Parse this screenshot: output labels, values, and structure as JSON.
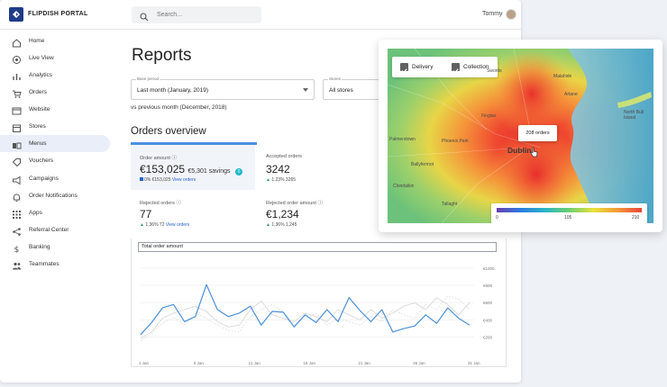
{
  "app": {
    "name": "FLIPDISH PORTAL"
  },
  "search": {
    "placeholder": "Search..."
  },
  "user": {
    "name": "Tommy"
  },
  "sidebar": {
    "items": [
      {
        "label": "Home",
        "icon": "home-icon"
      },
      {
        "label": "Live View",
        "icon": "live-view-icon"
      },
      {
        "label": "Analytics",
        "icon": "analytics-icon"
      },
      {
        "label": "Orders",
        "icon": "orders-icon"
      },
      {
        "label": "Website",
        "icon": "website-icon"
      },
      {
        "label": "Stores",
        "icon": "stores-icon"
      },
      {
        "label": "Menus",
        "icon": "menus-icon"
      },
      {
        "label": "Vouchers",
        "icon": "vouchers-icon"
      },
      {
        "label": "Campaigns",
        "icon": "campaigns-icon"
      },
      {
        "label": "Order Notifications",
        "icon": "notifications-icon"
      },
      {
        "label": "Apps",
        "icon": "apps-icon"
      },
      {
        "label": "Referral Center",
        "icon": "referral-icon"
      },
      {
        "label": "Banking",
        "icon": "banking-icon"
      },
      {
        "label": "Teammates",
        "icon": "teammates-icon"
      }
    ],
    "active_index": 6
  },
  "reports": {
    "title": "Reports",
    "base_period_label": "Base period",
    "base_period_value": "Last month (January, 2019)",
    "stores_label": "Stores",
    "stores_value": "All stores",
    "comparison_text": "vs previous month (December, 2018)",
    "section_title": "Orders overview"
  },
  "stats": {
    "order_amount": {
      "label": "Order amount",
      "value": "€153,025",
      "savings": "€5,301 savings",
      "sub": "0% €153,025",
      "link": "View orders",
      "badge": "0"
    },
    "accepted_orders": {
      "label": "Accepted orders",
      "value": "3242",
      "sub": "1.23% 3265"
    },
    "rejected_orders": {
      "label": "Rejected orders",
      "value": "77",
      "sub": "1.36% 72",
      "link": "View orders"
    },
    "rejected_amount": {
      "label": "Rejected order amount",
      "value": "€1,234",
      "sub": "1.36% 1,245"
    }
  },
  "chart": {
    "label": "Total order amount",
    "x_ticks": [
      "1 Jan",
      "6 Jan",
      "11 Jan",
      "16 Jan",
      "21 Jan",
      "26 Jan",
      "31 Jan"
    ],
    "y_ticks": [
      "€1000",
      "€800",
      "€600",
      "€400",
      "€200"
    ]
  },
  "chart_data": {
    "type": "line",
    "title": "Total order amount",
    "ylim": [
      100,
      1000
    ],
    "x": [
      "1 Jan",
      "2 Jan",
      "3 Jan",
      "4 Jan",
      "5 Jan",
      "6 Jan",
      "7 Jan",
      "8 Jan",
      "9 Jan",
      "10 Jan",
      "11 Jan",
      "12 Jan",
      "13 Jan",
      "14 Jan",
      "15 Jan",
      "16 Jan",
      "17 Jan",
      "18 Jan",
      "19 Jan",
      "20 Jan",
      "21 Jan",
      "22 Jan",
      "23 Jan",
      "24 Jan",
      "25 Jan",
      "26 Jan",
      "27 Jan",
      "28 Jan",
      "29 Jan",
      "30 Jan",
      "31 Jan"
    ],
    "series": [
      {
        "values": [
          270,
          410,
          580,
          620,
          420,
          480,
          850,
          560,
          480,
          520,
          600,
          380,
          540,
          530,
          360,
          500,
          410,
          560,
          420,
          700,
          550,
          420,
          560,
          300,
          340,
          370,
          500,
          400,
          580,
          460,
          380
        ],
        "color": "#4a90d9"
      },
      {
        "values": [
          230,
          300,
          460,
          520,
          560,
          600,
          540,
          420,
          360,
          380,
          560,
          660,
          500,
          460,
          420,
          520,
          480,
          420,
          560,
          500,
          440,
          560,
          460,
          520,
          600,
          640,
          560,
          700,
          620,
          500,
          640
        ],
        "color": "#d8d8d8"
      },
      {
        "values": [
          200,
          280,
          400,
          470,
          380,
          520,
          460,
          380,
          320,
          300,
          480,
          560,
          620,
          540,
          380,
          460,
          520,
          380,
          460,
          420,
          380,
          480,
          420,
          560,
          500,
          460,
          620,
          560,
          720,
          680,
          560
        ],
        "color": "#e2e2e2"
      }
    ]
  },
  "map": {
    "delivery_label": "Delivery",
    "collection_label": "Collection",
    "tooltip": "208 orders",
    "city_label": "Dublin",
    "scale_min": "0",
    "scale_mid": "105",
    "scale_max": "210",
    "place_labels": [
      "Malahide",
      "Swords",
      "Artane",
      "North Bull Island",
      "Finglas",
      "Phoenix Park",
      "Palmerstown",
      "Ballyfermot",
      "Clondalkin",
      "Tallaght"
    ]
  }
}
